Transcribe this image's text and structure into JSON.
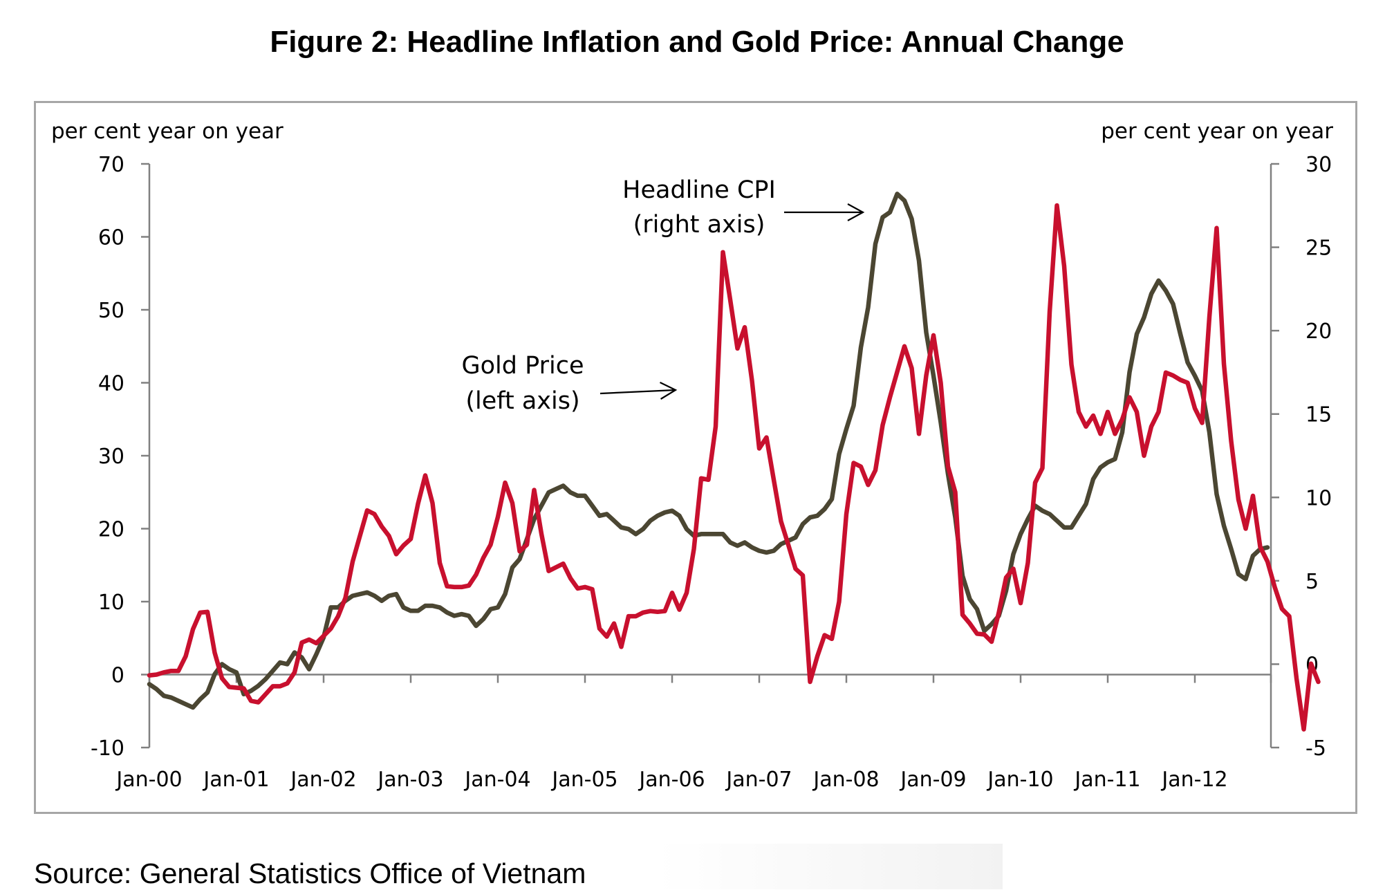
{
  "title": "Figure 2: Headline Inflation and Gold Price: Annual Change",
  "source": "Source: General Statistics Office of Vietnam",
  "colors": {
    "gold": "#c8102e",
    "cpi": "#4b4632",
    "axis": "#808080",
    "frame": "#a6a6a6"
  },
  "chart_data": {
    "type": "line",
    "left_axis_label": "per cent year on year",
    "right_axis_label": "per cent year on year",
    "left_ylim": [
      -10,
      70
    ],
    "left_ticks": [
      -10,
      0,
      10,
      20,
      30,
      40,
      50,
      60,
      70
    ],
    "right_ylim": [
      -5,
      30
    ],
    "right_ticks": [
      -5,
      0,
      5,
      10,
      15,
      20,
      25,
      30
    ],
    "x_start": "Jan-00",
    "x_end": "Nov-12",
    "x_tick_labels": [
      "Jan-00",
      "Jan-01",
      "Jan-02",
      "Jan-03",
      "Jan-04",
      "Jan-05",
      "Jan-06",
      "Jan-07",
      "Jan-08",
      "Jan-09",
      "Jan-10",
      "Jan-11",
      "Jan-12"
    ],
    "grid": false,
    "legend": "none",
    "annotations": [
      {
        "lines": [
          "Headline CPI",
          "(right axis)"
        ],
        "series": "cpi"
      },
      {
        "lines": [
          "Gold Price",
          "(left axis)"
        ],
        "series": "gold"
      }
    ],
    "series": [
      {
        "name": "Gold Price",
        "axis": "left",
        "key": "gold",
        "values": [
          -0.1,
          0,
          0.3,
          0.5,
          0.5,
          2.5,
          6.2,
          8.5,
          8.6,
          3,
          -0.5,
          -1.7,
          -1.8,
          -1.9,
          -3.6,
          -3.8,
          -2.7,
          -1.6,
          -1.6,
          -1.2,
          0.3,
          4.4,
          4.8,
          4.3,
          5.3,
          6.3,
          8,
          10.5,
          15.5,
          19,
          22.5,
          22,
          20.3,
          19,
          16.5,
          17.7,
          18.6,
          23.4,
          27.3,
          23.5,
          15.3,
          12.1,
          12,
          12,
          12.2,
          13.7,
          16,
          17.8,
          21.6,
          26.3,
          23.5,
          16.9,
          17.8,
          25.3,
          19.3,
          14.2,
          14.7,
          15.2,
          13.2,
          11.8,
          12,
          11.7,
          6.3,
          5.2,
          7,
          3.8,
          8,
          8,
          8.5,
          8.7,
          8.6,
          8.7,
          11.2,
          8.9,
          11.2,
          17.2,
          26.9,
          26.7,
          34,
          57.9,
          51.4,
          44.7,
          47.6,
          40.3,
          31,
          32.5,
          26.7,
          21,
          17.8,
          14.5,
          13.6,
          -1,
          2.5,
          5.4,
          4.9,
          10,
          22,
          29,
          28.5,
          26,
          28,
          34.2,
          38,
          41.5,
          45,
          42,
          33,
          41,
          46.5,
          40,
          28.5,
          25,
          8.2,
          7,
          5.6,
          5.5,
          4.5,
          8.5,
          13.3,
          14.5,
          9.8,
          15.3,
          26.3,
          28.3,
          49.7,
          64.3,
          56,
          42.5,
          36,
          34,
          35.5,
          33,
          36,
          33,
          35,
          38,
          36,
          30,
          34,
          36,
          41.4,
          41,
          40.4,
          40,
          36.5,
          34.5,
          49,
          61.2,
          42.6,
          32,
          24,
          20,
          24.5,
          17.5,
          15.5,
          12,
          9,
          8,
          -0.5,
          -7.5,
          1.5,
          -1
        ]
      },
      {
        "name": "Headline CPI",
        "axis": "right",
        "key": "cpi",
        "values": [
          -1.2,
          -1.5,
          -1.9,
          -2,
          -2.2,
          -2.4,
          -2.6,
          -2.1,
          -1.7,
          -0.6,
          0,
          -0.3,
          -0.5,
          -1.8,
          -1.6,
          -1.3,
          -0.9,
          -0.4,
          0.1,
          0,
          0.7,
          0.4,
          -0.3,
          0.6,
          1.6,
          3.4,
          3.4,
          3.8,
          4.1,
          4.2,
          4.3,
          4.1,
          3.8,
          4.1,
          4.2,
          3.4,
          3.2,
          3.2,
          3.5,
          3.5,
          3.4,
          3.1,
          2.9,
          3,
          2.9,
          2.3,
          2.7,
          3.3,
          3.4,
          4.2,
          5.8,
          6.3,
          7.5,
          8.7,
          9.5,
          10.3,
          10.5,
          10.7,
          10.3,
          10.1,
          10.1,
          9.5,
          8.9,
          9,
          8.6,
          8.2,
          8.1,
          7.8,
          8.1,
          8.6,
          8.9,
          9.1,
          9.2,
          8.9,
          8.1,
          7.7,
          7.8,
          7.8,
          7.8,
          7.8,
          7.3,
          7.1,
          7.3,
          7,
          6.8,
          6.7,
          6.8,
          7.2,
          7.4,
          7.6,
          8.4,
          8.8,
          8.9,
          9.3,
          9.9,
          12.6,
          14.1,
          15.5,
          19,
          21.4,
          25.2,
          26.8,
          27.1,
          28.2,
          27.8,
          26.7,
          24.2,
          19.9,
          17.3,
          14.5,
          11.4,
          8.8,
          5.3,
          3.9,
          3.3,
          2,
          2.4,
          2.9,
          4.4,
          6.6,
          7.8,
          8.7,
          9.5,
          9.2,
          9,
          8.6,
          8.2,
          8.2,
          8.9,
          9.6,
          11.1,
          11.8,
          12.1,
          12.3,
          13.9,
          17.5,
          19.8,
          20.8,
          22.2,
          23,
          22.4,
          21.6,
          19.8,
          18.1,
          17.3,
          16.4,
          13.9,
          10.2,
          8.3,
          6.9,
          5.4,
          5.1,
          6.5,
          6.9,
          7
        ]
      }
    ]
  }
}
